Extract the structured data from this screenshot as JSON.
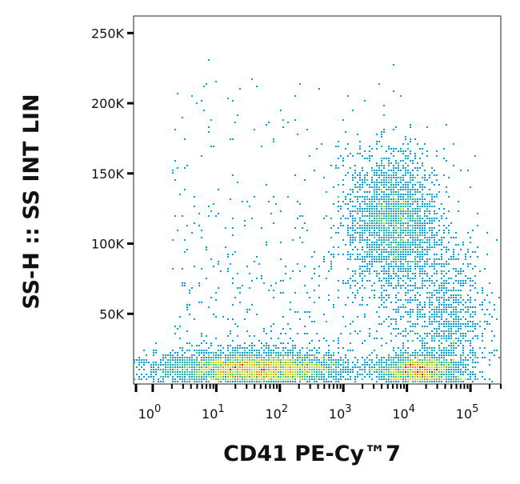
{
  "chart_data": {
    "type": "scatter",
    "style": "flow-cytometry-density-dot-plot",
    "xlabel": "CD41 PE-Cy™7",
    "ylabel": "SS-H :: SS INT LIN",
    "x_scale": "log",
    "xlim": [
      0.5,
      300000
    ],
    "ylim": [
      0,
      262144
    ],
    "x_ticks": [
      {
        "value": 1,
        "base": "10",
        "exp": "0"
      },
      {
        "value": 10,
        "base": "10",
        "exp": "1"
      },
      {
        "value": 100,
        "base": "10",
        "exp": "2"
      },
      {
        "value": 1000,
        "base": "10",
        "exp": "3"
      },
      {
        "value": 10000,
        "base": "10",
        "exp": "4"
      },
      {
        "value": 100000,
        "base": "10",
        "exp": "5"
      }
    ],
    "y_ticks": [
      {
        "value": 50000,
        "label": "50K"
      },
      {
        "value": 100000,
        "label": "100K"
      },
      {
        "value": 150000,
        "label": "150K"
      },
      {
        "value": 200000,
        "label": "200K"
      },
      {
        "value": 250000,
        "label": "250K"
      }
    ],
    "populations": [
      {
        "center_x": 40,
        "center_y": 11000,
        "spread_log_x": 0.75,
        "spread_y": 6000,
        "weight": 0.42,
        "peak_density": "high"
      },
      {
        "center_x": 6000,
        "center_y": 115000,
        "spread_log_x": 0.35,
        "spread_y": 25000,
        "weight": 0.26,
        "peak_density": "medium"
      },
      {
        "center_x": 14000,
        "center_y": 10000,
        "spread_log_x": 0.3,
        "spread_y": 5000,
        "weight": 0.16,
        "peak_density": "high"
      },
      {
        "center_x": 40000,
        "center_y": 40000,
        "spread_log_x": 0.35,
        "spread_y": 30000,
        "weight": 0.12,
        "peak_density": "medium"
      }
    ],
    "density_colors": [
      "#1a1ad0",
      "#00a0e0",
      "#20d090",
      "#c8e000",
      "#ff8000",
      "#e00000"
    ],
    "grid": false
  }
}
